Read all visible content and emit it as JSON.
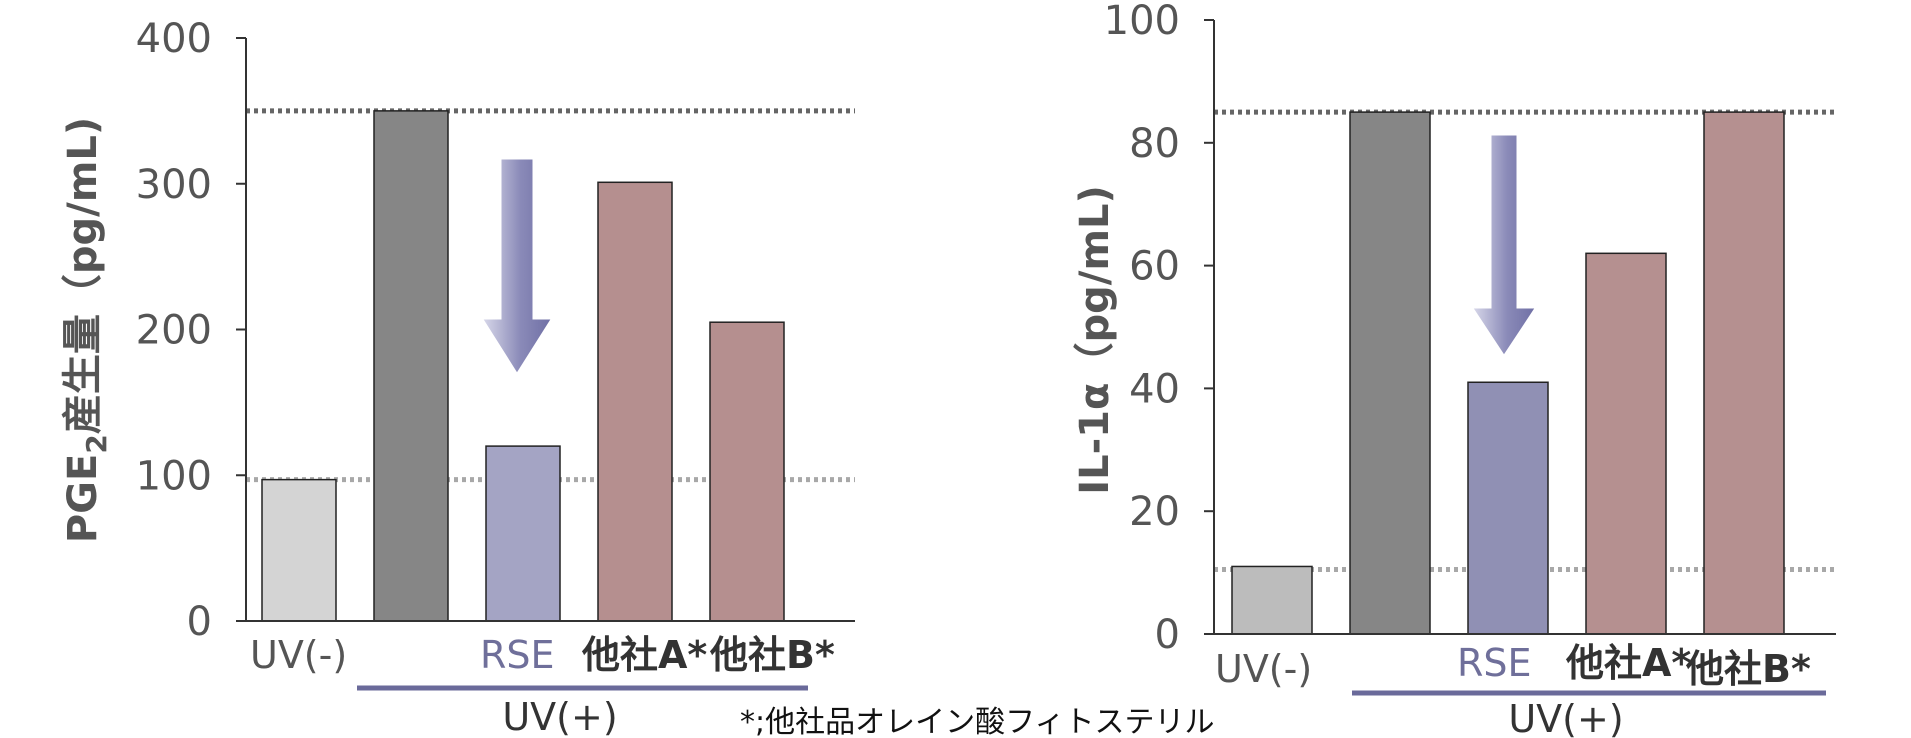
{
  "chart_data": [
    {
      "type": "bar",
      "ylabel": "PGE",
      "ylabel_sub": "2",
      "ylabel_rest": "産生量（pg/mL)",
      "ylim": [
        0,
        400
      ],
      "yticks": [
        "0",
        "100",
        "200",
        "300",
        "400"
      ],
      "categories": [
        "UV(-)",
        "",
        "RSE",
        "他社A*",
        "他社B*"
      ],
      "values": [
        97,
        350,
        120,
        301,
        205
      ],
      "colors": [
        "#d4d4d4",
        "#868686",
        "#a4a4c4",
        "#b58f8f",
        "#b58f8f"
      ],
      "reference_lines": [
        350,
        97
      ],
      "group_label": "UV(+)",
      "grid": false
    },
    {
      "type": "bar",
      "ylabel": "IL-1α（pg/mL)",
      "ylim": [
        0,
        100
      ],
      "yticks": [
        "0",
        "20",
        "40",
        "60",
        "80",
        "100"
      ],
      "categories": [
        "UV(-)",
        "",
        "RSE",
        "他社A*",
        "他社B*"
      ],
      "values": [
        11,
        85,
        41,
        62,
        85
      ],
      "colors": [
        "#bcbcbc",
        "#868686",
        "#9090b4",
        "#b59090",
        "#b59090"
      ],
      "reference_lines": [
        85,
        10.5
      ],
      "group_label": "UV(+)",
      "grid": false
    }
  ],
  "footnote": "*;他社品オレイン酸フィトステリル"
}
